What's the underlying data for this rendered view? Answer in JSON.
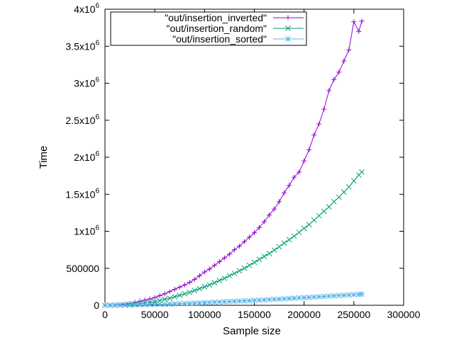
{
  "chart_data": {
    "type": "line",
    "xlabel": "Sample size",
    "ylabel": "Time",
    "xlim": [
      0,
      300000
    ],
    "ylim": [
      0,
      4000000
    ],
    "x_ticks": [
      {
        "value": 0,
        "label": "0"
      },
      {
        "value": 50000,
        "label": "50000"
      },
      {
        "value": 100000,
        "label": "100000"
      },
      {
        "value": 150000,
        "label": "150000"
      },
      {
        "value": 200000,
        "label": "200000"
      },
      {
        "value": 250000,
        "label": "250000"
      },
      {
        "value": 300000,
        "label": "300000"
      }
    ],
    "y_ticks": [
      {
        "value": 0,
        "label": "0",
        "base": "0",
        "exp": ""
      },
      {
        "value": 500000,
        "label": "500000",
        "base": "500000",
        "exp": ""
      },
      {
        "value": 1000000,
        "label": "1x10^6",
        "base": "1x10",
        "exp": "6"
      },
      {
        "value": 1500000,
        "label": "1.5x10^6",
        "base": "1.5x10",
        "exp": "6"
      },
      {
        "value": 2000000,
        "label": "2x10^6",
        "base": "2x10",
        "exp": "6"
      },
      {
        "value": 2500000,
        "label": "2.5x10^6",
        "base": "2.5x10",
        "exp": "6"
      },
      {
        "value": 3000000,
        "label": "3x10^6",
        "base": "3x10",
        "exp": "6"
      },
      {
        "value": 3500000,
        "label": "3.5x10^6",
        "base": "3.5x10",
        "exp": "6"
      },
      {
        "value": 4000000,
        "label": "4x10^6",
        "base": "4x10",
        "exp": "6"
      }
    ],
    "grid": false,
    "legend_position": "top-left",
    "series": [
      {
        "name": "\"out/insertion_inverted\"",
        "color": "#9400d3",
        "marker": "plus",
        "x": [
          0,
          5000,
          10000,
          15000,
          20000,
          25000,
          30000,
          35000,
          40000,
          45000,
          50000,
          55000,
          60000,
          65000,
          70000,
          75000,
          80000,
          85000,
          90000,
          95000,
          100000,
          105000,
          110000,
          115000,
          120000,
          125000,
          130000,
          135000,
          140000,
          145000,
          150000,
          155000,
          160000,
          165000,
          170000,
          175000,
          180000,
          185000,
          190000,
          195000,
          200000,
          205000,
          210000,
          215000,
          220000,
          225000,
          230000,
          235000,
          240000,
          245000,
          250000,
          255000,
          258000
        ],
        "y": [
          0,
          1000,
          4000,
          9000,
          16000,
          25000,
          40000,
          55000,
          70000,
          85000,
          105000,
          130000,
          155000,
          185000,
          215000,
          245000,
          275000,
          310000,
          350000,
          400000,
          450000,
          490000,
          540000,
          590000,
          640000,
          690000,
          750000,
          800000,
          860000,
          920000,
          980000,
          1050000,
          1130000,
          1220000,
          1300000,
          1400000,
          1520000,
          1620000,
          1730000,
          1800000,
          1950000,
          2100000,
          2300000,
          2450000,
          2650000,
          2900000,
          3050000,
          3150000,
          3300000,
          3450000,
          3830000,
          3700000,
          3840000
        ]
      },
      {
        "name": "\"out/insertion_random\"",
        "color": "#009e73",
        "marker": "cross",
        "x": [
          0,
          5000,
          10000,
          15000,
          20000,
          25000,
          30000,
          35000,
          40000,
          45000,
          50000,
          55000,
          60000,
          65000,
          70000,
          75000,
          80000,
          85000,
          90000,
          95000,
          100000,
          105000,
          110000,
          115000,
          120000,
          125000,
          130000,
          135000,
          140000,
          145000,
          150000,
          155000,
          160000,
          165000,
          170000,
          175000,
          180000,
          185000,
          190000,
          195000,
          200000,
          205000,
          210000,
          215000,
          220000,
          225000,
          230000,
          235000,
          240000,
          245000,
          250000,
          255000,
          258000
        ],
        "y": [
          0,
          1000,
          2000,
          4000,
          7000,
          11000,
          16000,
          22000,
          30000,
          40000,
          50000,
          65000,
          80000,
          95000,
          115000,
          135000,
          155000,
          175000,
          200000,
          225000,
          250000,
          275000,
          305000,
          335000,
          365000,
          400000,
          430000,
          465000,
          500000,
          540000,
          580000,
          620000,
          660000,
          700000,
          745000,
          790000,
          840000,
          885000,
          935000,
          985000,
          1040000,
          1090000,
          1150000,
          1210000,
          1270000,
          1330000,
          1400000,
          1460000,
          1530000,
          1600000,
          1680000,
          1760000,
          1800000
        ]
      },
      {
        "name": "\"out/insertion_sorted\"",
        "color": "#56b4e9",
        "marker": "star",
        "x": [
          0,
          5000,
          10000,
          15000,
          20000,
          25000,
          30000,
          35000,
          40000,
          45000,
          50000,
          55000,
          60000,
          65000,
          70000,
          75000,
          80000,
          85000,
          90000,
          95000,
          100000,
          105000,
          110000,
          115000,
          120000,
          125000,
          130000,
          135000,
          140000,
          145000,
          150000,
          155000,
          160000,
          165000,
          170000,
          175000,
          180000,
          185000,
          190000,
          195000,
          200000,
          205000,
          210000,
          215000,
          220000,
          225000,
          230000,
          235000,
          240000,
          245000,
          250000,
          255000,
          258000
        ],
        "y": [
          0,
          200,
          500,
          1000,
          2000,
          3000,
          4000,
          5500,
          7000,
          9000,
          11000,
          13000,
          15000,
          17000,
          19500,
          22000,
          24500,
          27000,
          30000,
          33000,
          36000,
          39000,
          42000,
          45000,
          48000,
          51000,
          54000,
          57000,
          60000,
          63000,
          66000,
          70000,
          73000,
          77000,
          81000,
          84000,
          88000,
          92000,
          96000,
          100000,
          104000,
          108000,
          112000,
          116000,
          120000,
          124000,
          128000,
          132000,
          136000,
          140000,
          144000,
          148000,
          150000
        ]
      }
    ]
  }
}
